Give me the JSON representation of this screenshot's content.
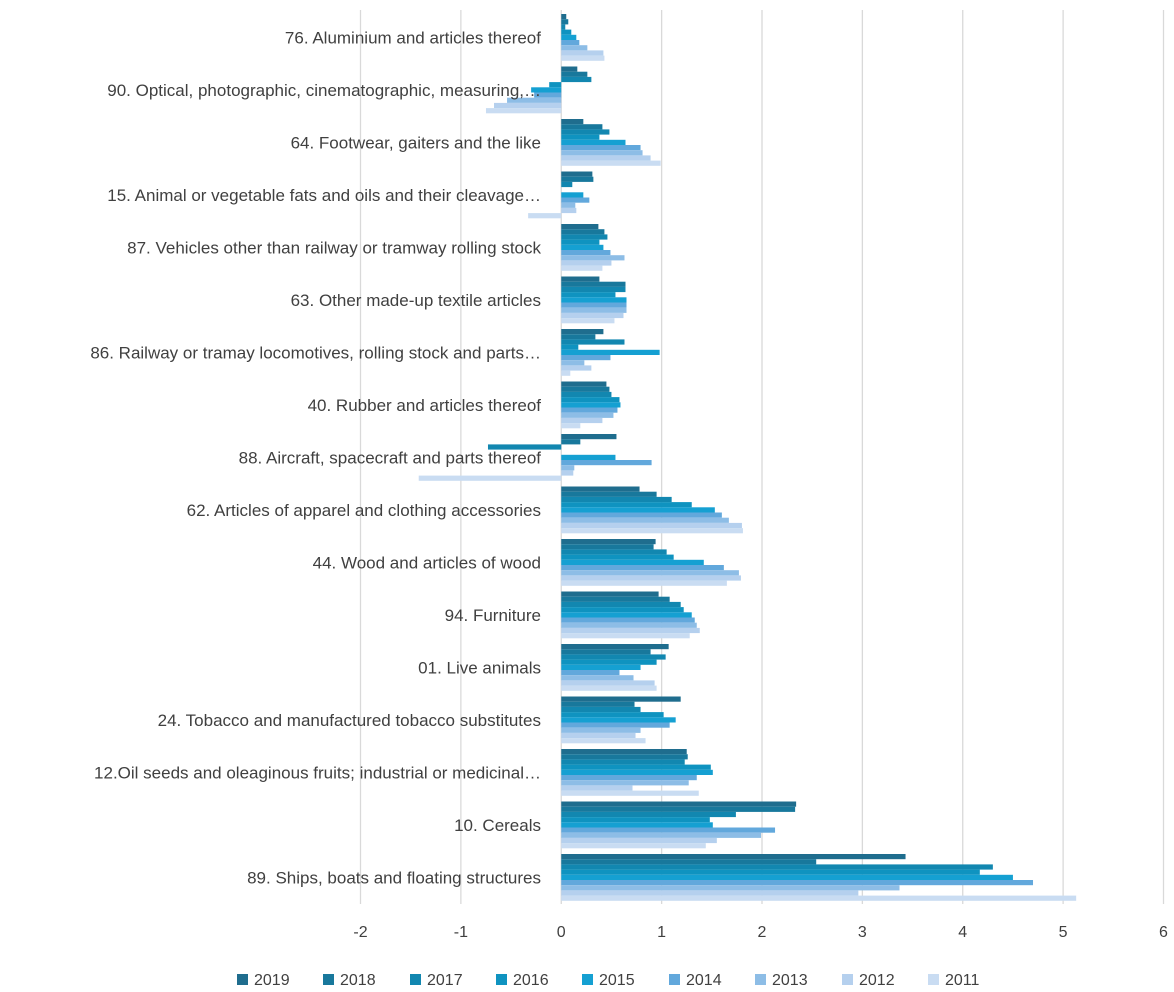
{
  "chart_data": {
    "type": "bar",
    "orientation": "horizontal",
    "title": "",
    "xlabel": "",
    "ylabel": "",
    "xlim": [
      -2,
      6
    ],
    "x_ticks": [
      "-2",
      "-1",
      "0",
      "1",
      "2",
      "3",
      "4",
      "5",
      "6"
    ],
    "grid": "vertical",
    "legend_position": "bottom",
    "categories": [
      "76. Aluminium and articles thereof",
      "90. Optical, photographic, cinematographic, measuring,…",
      "64. Footwear, gaiters and the like",
      "15. Animal or vegetable fats and oils and their cleavage…",
      "87. Vehicles other than railway or tramway rolling stock",
      "63. Other made-up textile articles",
      "86. Railway or tramay locomotives, rolling stock and parts…",
      "40. Rubber and articles thereof",
      "88. Aircraft, spacecraft and parts thereof",
      "62. Articles of apparel and clothing accessories",
      "44. Wood and articles of wood",
      "94. Furniture",
      "01. Live animals",
      "24. Tobacco and manufactured tobacco substitutes",
      "12.Oil seeds and oleaginous fruits; industrial or medicinal…",
      "10. Cereals",
      "89. Ships, boats and floating structures"
    ],
    "series": [
      {
        "name": "2019",
        "color": "#1f6d8e",
        "values": [
          0.05,
          0.16,
          0.22,
          0.31,
          0.37,
          0.38,
          0.42,
          0.45,
          0.55,
          0.78,
          0.94,
          0.97,
          1.07,
          1.19,
          1.25,
          2.34,
          3.43
        ]
      },
      {
        "name": "2018",
        "color": "#18789c",
        "values": [
          0.07,
          0.26,
          0.41,
          0.32,
          0.43,
          0.64,
          0.34,
          0.48,
          0.19,
          0.95,
          0.92,
          1.08,
          0.89,
          0.73,
          1.26,
          2.33,
          2.54
        ]
      },
      {
        "name": "2017",
        "color": "#1287b0",
        "values": [
          0.04,
          0.3,
          0.48,
          0.11,
          0.46,
          0.64,
          0.63,
          0.5,
          -0.73,
          1.1,
          1.05,
          1.19,
          1.04,
          0.79,
          1.23,
          1.74,
          4.3
        ]
      },
      {
        "name": "2016",
        "color": "#0f93c0",
        "values": [
          0.1,
          -0.12,
          0.38,
          0.0,
          0.38,
          0.54,
          0.17,
          0.58,
          0.0,
          1.3,
          1.12,
          1.22,
          0.95,
          1.02,
          1.49,
          1.48,
          4.17
        ]
      },
      {
        "name": "2015",
        "color": "#15a0d2",
        "values": [
          0.15,
          -0.3,
          0.64,
          0.22,
          0.42,
          0.65,
          0.98,
          0.59,
          0.54,
          1.53,
          1.42,
          1.3,
          0.79,
          1.14,
          1.51,
          1.51,
          4.5
        ]
      },
      {
        "name": "2014",
        "color": "#62a8dc",
        "values": [
          0.18,
          -0.27,
          0.79,
          0.28,
          0.49,
          0.65,
          0.49,
          0.56,
          0.9,
          1.6,
          1.62,
          1.33,
          0.58,
          1.08,
          1.35,
          2.13,
          4.7
        ]
      },
      {
        "name": "2013",
        "color": "#8dbde6",
        "values": [
          0.26,
          -0.54,
          0.81,
          0.14,
          0.63,
          0.65,
          0.23,
          0.52,
          0.13,
          1.67,
          1.77,
          1.35,
          0.72,
          0.79,
          1.27,
          1.99,
          3.37
        ]
      },
      {
        "name": "2012",
        "color": "#b5d0ee",
        "values": [
          0.42,
          -0.67,
          0.89,
          0.15,
          0.5,
          0.62,
          0.3,
          0.41,
          0.12,
          1.8,
          1.79,
          1.38,
          0.93,
          0.74,
          0.71,
          1.55,
          2.96
        ]
      },
      {
        "name": "2011",
        "color": "#c9dcf2",
        "values": [
          0.43,
          -0.75,
          0.99,
          -0.33,
          0.41,
          0.53,
          0.09,
          0.19,
          -1.42,
          1.81,
          1.65,
          1.28,
          0.95,
          0.84,
          1.37,
          1.44,
          5.13
        ]
      }
    ]
  }
}
